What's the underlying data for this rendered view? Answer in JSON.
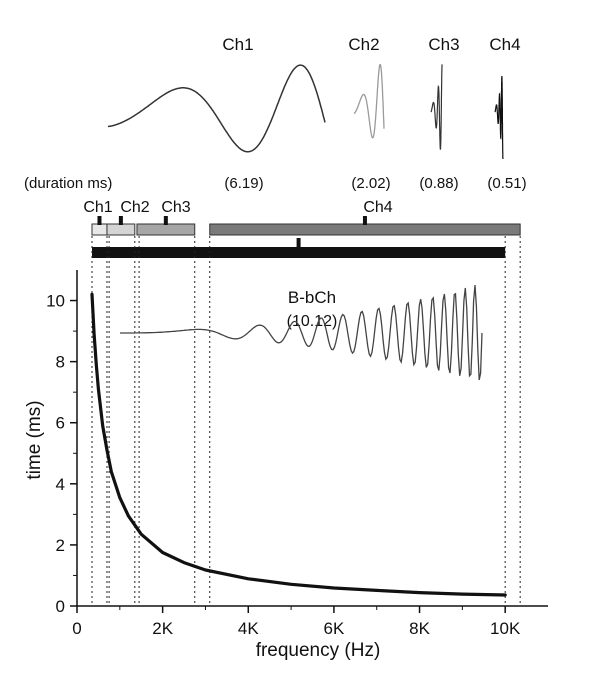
{
  "chart_data": {
    "type": "line",
    "xlabel": "frequency (Hz)",
    "ylabel": "time (ms)",
    "xlim": [
      0,
      11000
    ],
    "ylim": [
      0,
      11
    ],
    "x_ticks": [
      {
        "value": 0,
        "label": "0"
      },
      {
        "value": 2000,
        "label": "2K"
      },
      {
        "value": 4000,
        "label": "4K"
      },
      {
        "value": 6000,
        "label": "6K"
      },
      {
        "value": 8000,
        "label": "8K"
      },
      {
        "value": 10000,
        "label": "10K"
      }
    ],
    "y_ticks": [
      {
        "value": 0,
        "label": "0"
      },
      {
        "value": 2,
        "label": "2"
      },
      {
        "value": 4,
        "label": "4"
      },
      {
        "value": 6,
        "label": "6"
      },
      {
        "value": 8,
        "label": "8"
      },
      {
        "value": 10,
        "label": "10"
      }
    ],
    "grid": false,
    "curve": {
      "x": [
        350,
        400,
        450,
        500,
        600,
        700,
        800,
        1000,
        1200,
        1500,
        2000,
        2500,
        3000,
        4000,
        5000,
        6000,
        7000,
        8000,
        9000,
        10000
      ],
      "y": [
        10.2,
        8.9,
        7.9,
        7.1,
        5.9,
        5.1,
        4.4,
        3.55,
        2.95,
        2.35,
        1.75,
        1.42,
        1.18,
        0.89,
        0.71,
        0.59,
        0.51,
        0.44,
        0.39,
        0.36
      ]
    },
    "duration_label": "(duration ms)",
    "channels": [
      {
        "name": "Ch1",
        "duration": "(6.19)",
        "fmin": 350,
        "fmax": 700,
        "color": "#e8e8e8"
      },
      {
        "name": "Ch2",
        "duration": "(2.02)",
        "fmin": 700,
        "fmax": 1350,
        "color": "#d4d4d4"
      },
      {
        "name": "Ch3",
        "duration": "(0.88)",
        "fmin": 1400,
        "fmax": 2750,
        "color": "#a6a6a6"
      },
      {
        "name": "Ch4",
        "duration": "(0.51)",
        "fmin": 3100,
        "fmax": 10350,
        "color": "#7a7a7a"
      }
    ],
    "bbch": {
      "name": "B-bCh",
      "duration": "(10.12)",
      "fmin": 350,
      "fmax": 10000,
      "color": "#111111"
    },
    "boundary_lines": [
      350,
      700,
      750,
      1350,
      1450,
      2750,
      3100,
      10000,
      10350
    ]
  }
}
